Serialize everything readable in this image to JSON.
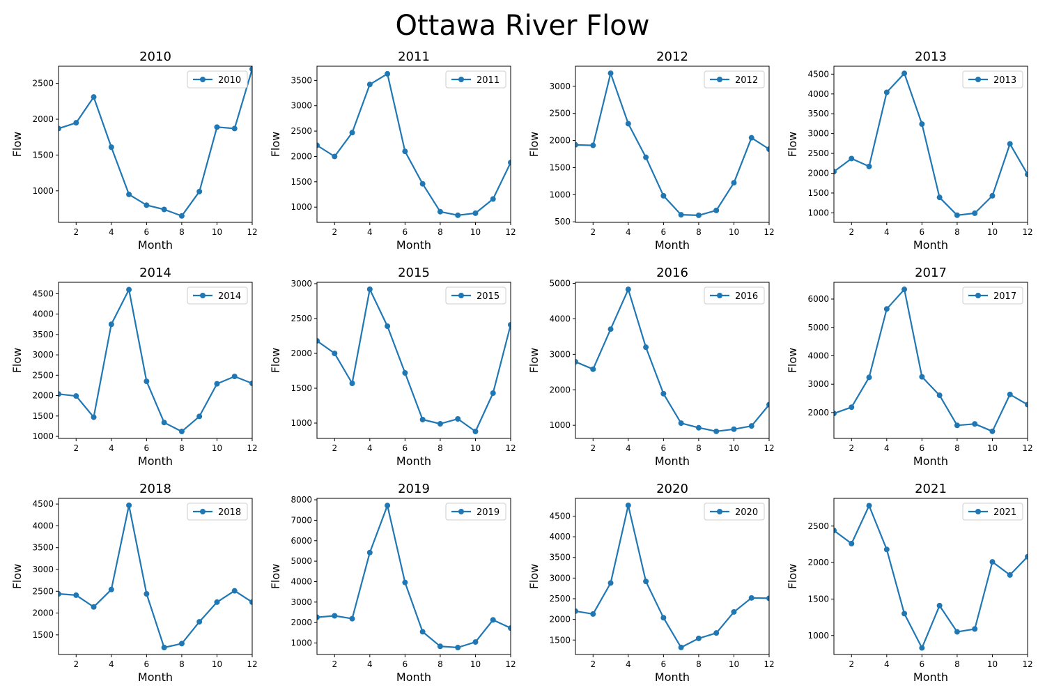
{
  "figure": {
    "title": "Ottawa River Flow"
  },
  "colors": {
    "series": "#1f77b4",
    "axis": "#000000"
  },
  "chart_data": [
    {
      "type": "line",
      "title": "2010",
      "xlabel": "Month",
      "ylabel": "Flow",
      "legend": "top-right",
      "x": [
        1,
        2,
        3,
        4,
        5,
        6,
        7,
        8,
        9,
        10,
        11,
        12
      ],
      "series": [
        {
          "name": "2010",
          "values": [
            1870,
            1950,
            2310,
            1610,
            950,
            800,
            740,
            650,
            990,
            1890,
            1870,
            2700
          ]
        }
      ],
      "xlim": [
        1,
        12
      ],
      "ylim": [
        560,
        2740
      ],
      "xticks": [
        2,
        4,
        6,
        8,
        10,
        12
      ],
      "yticks": [
        1000,
        1500,
        2000,
        2500
      ]
    },
    {
      "type": "line",
      "title": "2011",
      "xlabel": "Month",
      "ylabel": "Flow",
      "legend": "top-right",
      "x": [
        1,
        2,
        3,
        4,
        5,
        6,
        7,
        8,
        9,
        10,
        11,
        12
      ],
      "series": [
        {
          "name": "2011",
          "values": [
            2220,
            2000,
            2470,
            3420,
            3630,
            2100,
            1460,
            910,
            840,
            880,
            1160,
            1880
          ]
        }
      ],
      "xlim": [
        1,
        12
      ],
      "ylim": [
        700,
        3780
      ],
      "xticks": [
        2,
        4,
        6,
        8,
        10,
        12
      ],
      "yticks": [
        1000,
        1500,
        2000,
        2500,
        3000,
        3500
      ]
    },
    {
      "type": "line",
      "title": "2012",
      "xlabel": "Month",
      "ylabel": "Flow",
      "legend": "top-right",
      "x": [
        1,
        2,
        3,
        4,
        5,
        6,
        7,
        8,
        9,
        10,
        11,
        12
      ],
      "series": [
        {
          "name": "2012",
          "values": [
            1920,
            1910,
            3240,
            2310,
            1690,
            980,
            630,
            620,
            710,
            1220,
            2050,
            1840
          ]
        }
      ],
      "xlim": [
        1,
        12
      ],
      "ylim": [
        490,
        3370
      ],
      "xticks": [
        2,
        4,
        6,
        8,
        10,
        12
      ],
      "yticks": [
        500,
        1000,
        1500,
        2000,
        2500,
        3000
      ]
    },
    {
      "type": "line",
      "title": "2013",
      "xlabel": "Month",
      "ylabel": "Flow",
      "legend": "top-right",
      "x": [
        1,
        2,
        3,
        4,
        5,
        6,
        7,
        8,
        9,
        10,
        11,
        12
      ],
      "series": [
        {
          "name": "2013",
          "values": [
            2040,
            2370,
            2170,
            4040,
            4520,
            3240,
            1390,
            940,
            990,
            1430,
            2740,
            1970
          ]
        }
      ],
      "xlim": [
        1,
        12
      ],
      "ylim": [
        760,
        4700
      ],
      "xticks": [
        2,
        4,
        6,
        8,
        10,
        12
      ],
      "yticks": [
        1000,
        1500,
        2000,
        2500,
        3000,
        3500,
        4000,
        4500
      ]
    },
    {
      "type": "line",
      "title": "2014",
      "xlabel": "Month",
      "ylabel": "Flow",
      "legend": "top-right",
      "x": [
        1,
        2,
        3,
        4,
        5,
        6,
        7,
        8,
        9,
        10,
        11,
        12
      ],
      "series": [
        {
          "name": "2014",
          "values": [
            2040,
            1990,
            1470,
            3750,
            4600,
            2350,
            1340,
            1120,
            1490,
            2290,
            2470,
            2300
          ]
        }
      ],
      "xlim": [
        1,
        12
      ],
      "ylim": [
        950,
        4780
      ],
      "xticks": [
        2,
        4,
        6,
        8,
        10,
        12
      ],
      "yticks": [
        1000,
        1500,
        2000,
        2500,
        3000,
        3500,
        4000,
        4500
      ]
    },
    {
      "type": "line",
      "title": "2015",
      "xlabel": "Month",
      "ylabel": "Flow",
      "legend": "top-right",
      "x": [
        1,
        2,
        3,
        4,
        5,
        6,
        7,
        8,
        9,
        10,
        11,
        12
      ],
      "series": [
        {
          "name": "2015",
          "values": [
            2180,
            2000,
            1570,
            2920,
            2390,
            1720,
            1050,
            990,
            1060,
            880,
            1430,
            2410
          ]
        }
      ],
      "xlim": [
        1,
        12
      ],
      "ylim": [
        780,
        3020
      ],
      "xticks": [
        2,
        4,
        6,
        8,
        10,
        12
      ],
      "yticks": [
        1000,
        1500,
        2000,
        2500,
        3000
      ]
    },
    {
      "type": "line",
      "title": "2016",
      "xlabel": "Month",
      "ylabel": "Flow",
      "legend": "top-right",
      "x": [
        1,
        2,
        3,
        4,
        5,
        6,
        7,
        8,
        9,
        10,
        11,
        12
      ],
      "series": [
        {
          "name": "2016",
          "values": [
            2790,
            2580,
            3710,
            4830,
            3200,
            1890,
            1060,
            930,
            830,
            890,
            980,
            1580
          ]
        }
      ],
      "xlim": [
        1,
        12
      ],
      "ylim": [
        630,
        5030
      ],
      "xticks": [
        2,
        4,
        6,
        8,
        10,
        12
      ],
      "yticks": [
        1000,
        2000,
        3000,
        4000,
        5000
      ]
    },
    {
      "type": "line",
      "title": "2017",
      "xlabel": "Month",
      "ylabel": "Flow",
      "legend": "top-right",
      "x": [
        1,
        2,
        3,
        4,
        5,
        6,
        7,
        8,
        9,
        10,
        11,
        12
      ],
      "series": [
        {
          "name": "2017",
          "values": [
            1970,
            2190,
            3240,
            5650,
            6340,
            3260,
            2610,
            1550,
            1600,
            1340,
            2640,
            2280
          ]
        }
      ],
      "xlim": [
        1,
        12
      ],
      "ylim": [
        1090,
        6590
      ],
      "xticks": [
        2,
        4,
        6,
        8,
        10,
        12
      ],
      "yticks": [
        2000,
        3000,
        4000,
        5000,
        6000
      ]
    },
    {
      "type": "line",
      "title": "2018",
      "xlabel": "Month",
      "ylabel": "Flow",
      "legend": "top-right",
      "x": [
        1,
        2,
        3,
        4,
        5,
        6,
        7,
        8,
        9,
        10,
        11,
        12
      ],
      "series": [
        {
          "name": "2018",
          "values": [
            2440,
            2410,
            2140,
            2540,
            4470,
            2440,
            1210,
            1300,
            1800,
            2250,
            2510,
            2250
          ]
        }
      ],
      "xlim": [
        1,
        12
      ],
      "ylim": [
        1050,
        4630
      ],
      "xticks": [
        2,
        4,
        6,
        8,
        10,
        12
      ],
      "yticks": [
        1500,
        2000,
        2500,
        3000,
        3500,
        4000,
        4500
      ]
    },
    {
      "type": "line",
      "title": "2019",
      "xlabel": "Month",
      "ylabel": "Flow",
      "legend": "top-right",
      "x": [
        1,
        2,
        3,
        4,
        5,
        6,
        7,
        8,
        9,
        10,
        11,
        12
      ],
      "series": [
        {
          "name": "2019",
          "values": [
            2260,
            2330,
            2190,
            5420,
            7720,
            3960,
            1550,
            840,
            780,
            1050,
            2130,
            1730
          ]
        }
      ],
      "xlim": [
        1,
        12
      ],
      "ylim": [
        440,
        8070
      ],
      "xticks": [
        2,
        4,
        6,
        8,
        10,
        12
      ],
      "yticks": [
        1000,
        2000,
        3000,
        4000,
        5000,
        6000,
        7000,
        8000
      ]
    },
    {
      "type": "line",
      "title": "2020",
      "xlabel": "Month",
      "ylabel": "Flow",
      "legend": "top-right",
      "x": [
        1,
        2,
        3,
        4,
        5,
        6,
        7,
        8,
        9,
        10,
        11,
        12
      ],
      "series": [
        {
          "name": "2020",
          "values": [
            2200,
            2130,
            2880,
            4760,
            2920,
            2040,
            1320,
            1540,
            1670,
            2180,
            2520,
            2510
          ]
        }
      ],
      "xlim": [
        1,
        12
      ],
      "ylim": [
        1150,
        4930
      ],
      "xticks": [
        2,
        4,
        6,
        8,
        10,
        12
      ],
      "yticks": [
        1500,
        2000,
        2500,
        3000,
        3500,
        4000,
        4500
      ]
    },
    {
      "type": "line",
      "title": "2021",
      "xlabel": "Month",
      "ylabel": "Flow",
      "legend": "top-right",
      "x": [
        1,
        2,
        3,
        4,
        5,
        6,
        7,
        8,
        9,
        10,
        11,
        12
      ],
      "series": [
        {
          "name": "2021",
          "values": [
            2440,
            2260,
            2780,
            2180,
            1300,
            830,
            1410,
            1050,
            1090,
            2010,
            1830,
            2080
          ]
        }
      ],
      "xlim": [
        1,
        12
      ],
      "ylim": [
        740,
        2880
      ],
      "xticks": [
        2,
        4,
        6,
        8,
        10,
        12
      ],
      "yticks": [
        1000,
        1500,
        2000,
        2500
      ]
    }
  ]
}
